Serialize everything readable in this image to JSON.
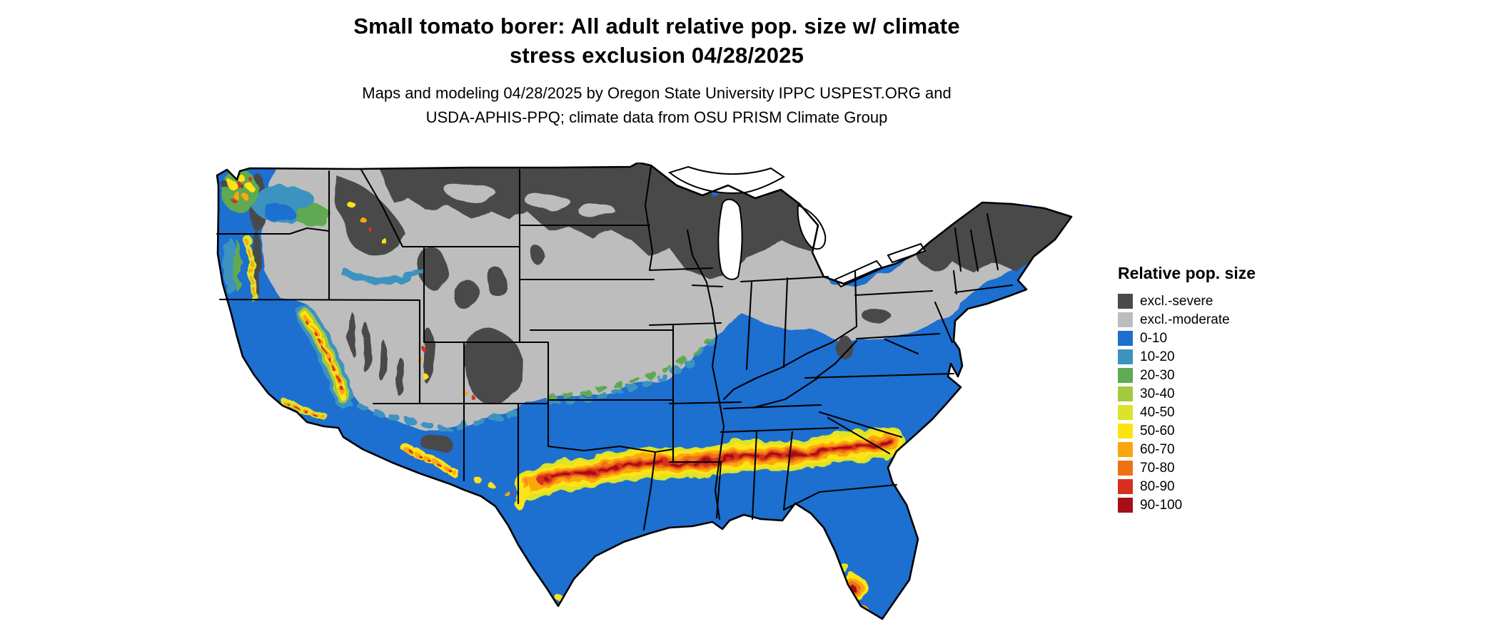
{
  "title": {
    "line1": "Small tomato borer: All adult relative pop. size w/ climate",
    "line2": "stress exclusion 04/28/2025"
  },
  "subtitle": {
    "line1": "Maps and modeling 04/28/2025 by Oregon State University IPPC USPEST.ORG and",
    "line2": "USDA-APHIS-PPQ; climate data from OSU PRISM Climate Group"
  },
  "legend": {
    "title": "Relative pop. size",
    "items": [
      {
        "key": "severe",
        "label": "excl.-severe",
        "color": "#4a4a4a"
      },
      {
        "key": "moderate",
        "label": "excl.-moderate",
        "color": "#bdbdbd"
      },
      {
        "key": "b0",
        "label": "0-10",
        "color": "#1d6fd0"
      },
      {
        "key": "b10",
        "label": "10-20",
        "color": "#3d93c0"
      },
      {
        "key": "b20",
        "label": "20-30",
        "color": "#61a953"
      },
      {
        "key": "b30",
        "label": "30-40",
        "color": "#a5c93d"
      },
      {
        "key": "b40",
        "label": "40-50",
        "color": "#dce32a"
      },
      {
        "key": "b50",
        "label": "50-60",
        "color": "#fee313"
      },
      {
        "key": "b60",
        "label": "60-70",
        "color": "#fba60f"
      },
      {
        "key": "b70",
        "label": "70-80",
        "color": "#ee7112"
      },
      {
        "key": "b80",
        "label": "80-90",
        "color": "#d7301f"
      },
      {
        "key": "b90",
        "label": "90-100",
        "color": "#a50f15"
      }
    ]
  },
  "map": {
    "border_color": "#000000",
    "lake_color": "#ffffff",
    "background_color": "#ffffff"
  }
}
